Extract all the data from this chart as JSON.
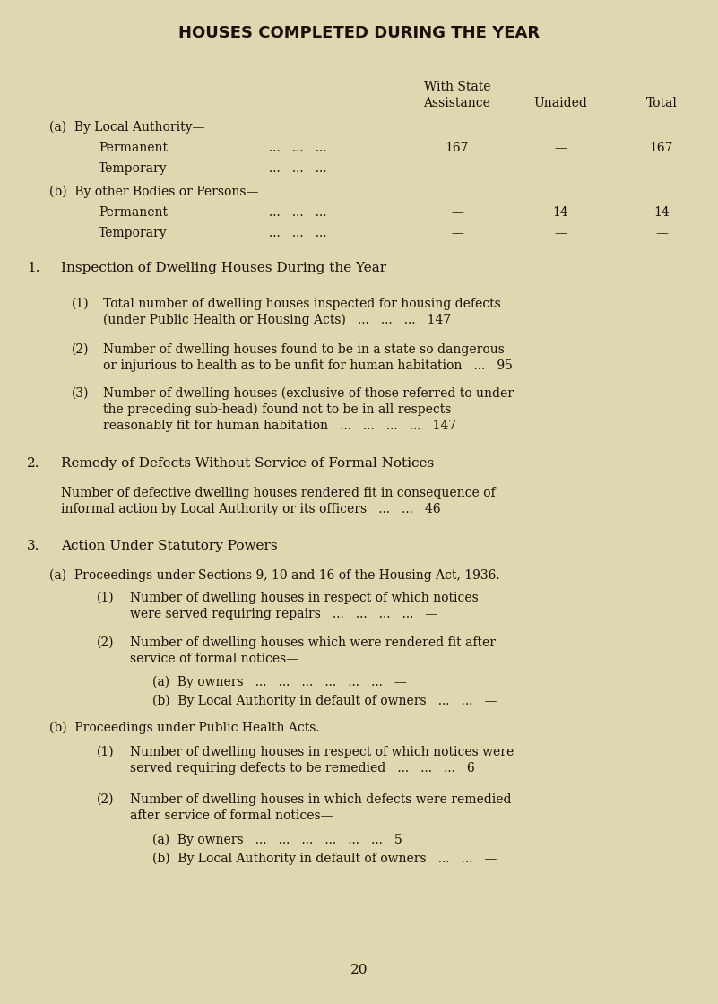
{
  "bg_color": "#ddd8b0",
  "text_color": "#1a1008",
  "title": "HOUSES COMPLETED DURING THE YEAR",
  "page_number": "20",
  "col1_label1": "With State",
  "col1_label2": "Assistance",
  "col2_label": "Unaided",
  "col3_label": "Total",
  "section_a_label": "(a)  By Local Authority—",
  "section_b_label": "(b)  By other Bodies or Persons—",
  "perm_a": [
    "Permanent",
    "...   ...   ...",
    "167",
    "—",
    "167"
  ],
  "temp_a": [
    "Temporary",
    "...   ...   ...",
    "—",
    "—",
    "—"
  ],
  "perm_b": [
    "Permanent",
    "...   ...   ...",
    "—",
    "14",
    "14"
  ],
  "temp_b": [
    "Temporary",
    "...   ...   ...",
    "—",
    "—",
    "—"
  ],
  "h1": "Inspection of Dwelling Houses During the Year",
  "h2": "Remedy of Defects Without Service of Formal Notices",
  "h3": "Action Under Statutory Powers",
  "item1_text1": "Total number of dwelling houses inspected for housing defects",
  "item1_text2": "(under Public Health or Housing Acts)   ...   ...   ...   147",
  "item2_text1": "Number of dwelling houses found to be in a state so dangerous",
  "item2_text2": "or injurious to health as to be unfit for human habitation   ...   95",
  "item3_text1": "Number of dwelling houses (exclusive of those referred to under",
  "item3_text2": "the preceding sub-head) found not to be in all respects",
  "item3_text3": "reasonably fit for human habitation   ...   ...   ...   ...   147",
  "rem_text1": "Number of defective dwelling houses rendered fit in consequence of",
  "rem_text2": "informal action by Local Authority or its officers   ...   ...   46",
  "sub_a_label": "(a)  Proceedings under Sections 9, 10 and 16 of the Housing Act, 1936.",
  "sub_b_label": "(b)  Proceedings under Public Health Acts.",
  "a1_text1": "Number of dwelling houses in respect of which notices",
  "a1_text2": "were served requiring repairs   ...   ...   ...   ...   —",
  "a2_text1": "Number of dwelling houses which were rendered fit after",
  "a2_text2": "service of formal notices—",
  "a_owners": "(a)  By owners   ...   ...   ...   ...   ...   ...   —",
  "a_local": "(b)  By Local Authority in default of owners   ...   ...   —",
  "b1_text1": "Number of dwelling houses in respect of which notices were",
  "b1_text2": "served requiring defects to be remedied   ...   ...   ...   6",
  "b2_text1": "Number of dwelling houses in which defects were remedied",
  "b2_text2": "after service of formal notices—",
  "b_owners": "(a)  By owners   ...   ...   ...   ...   ...   ...   5",
  "b_local": "(b)  By Local Authority in default of owners   ...   ...   —"
}
